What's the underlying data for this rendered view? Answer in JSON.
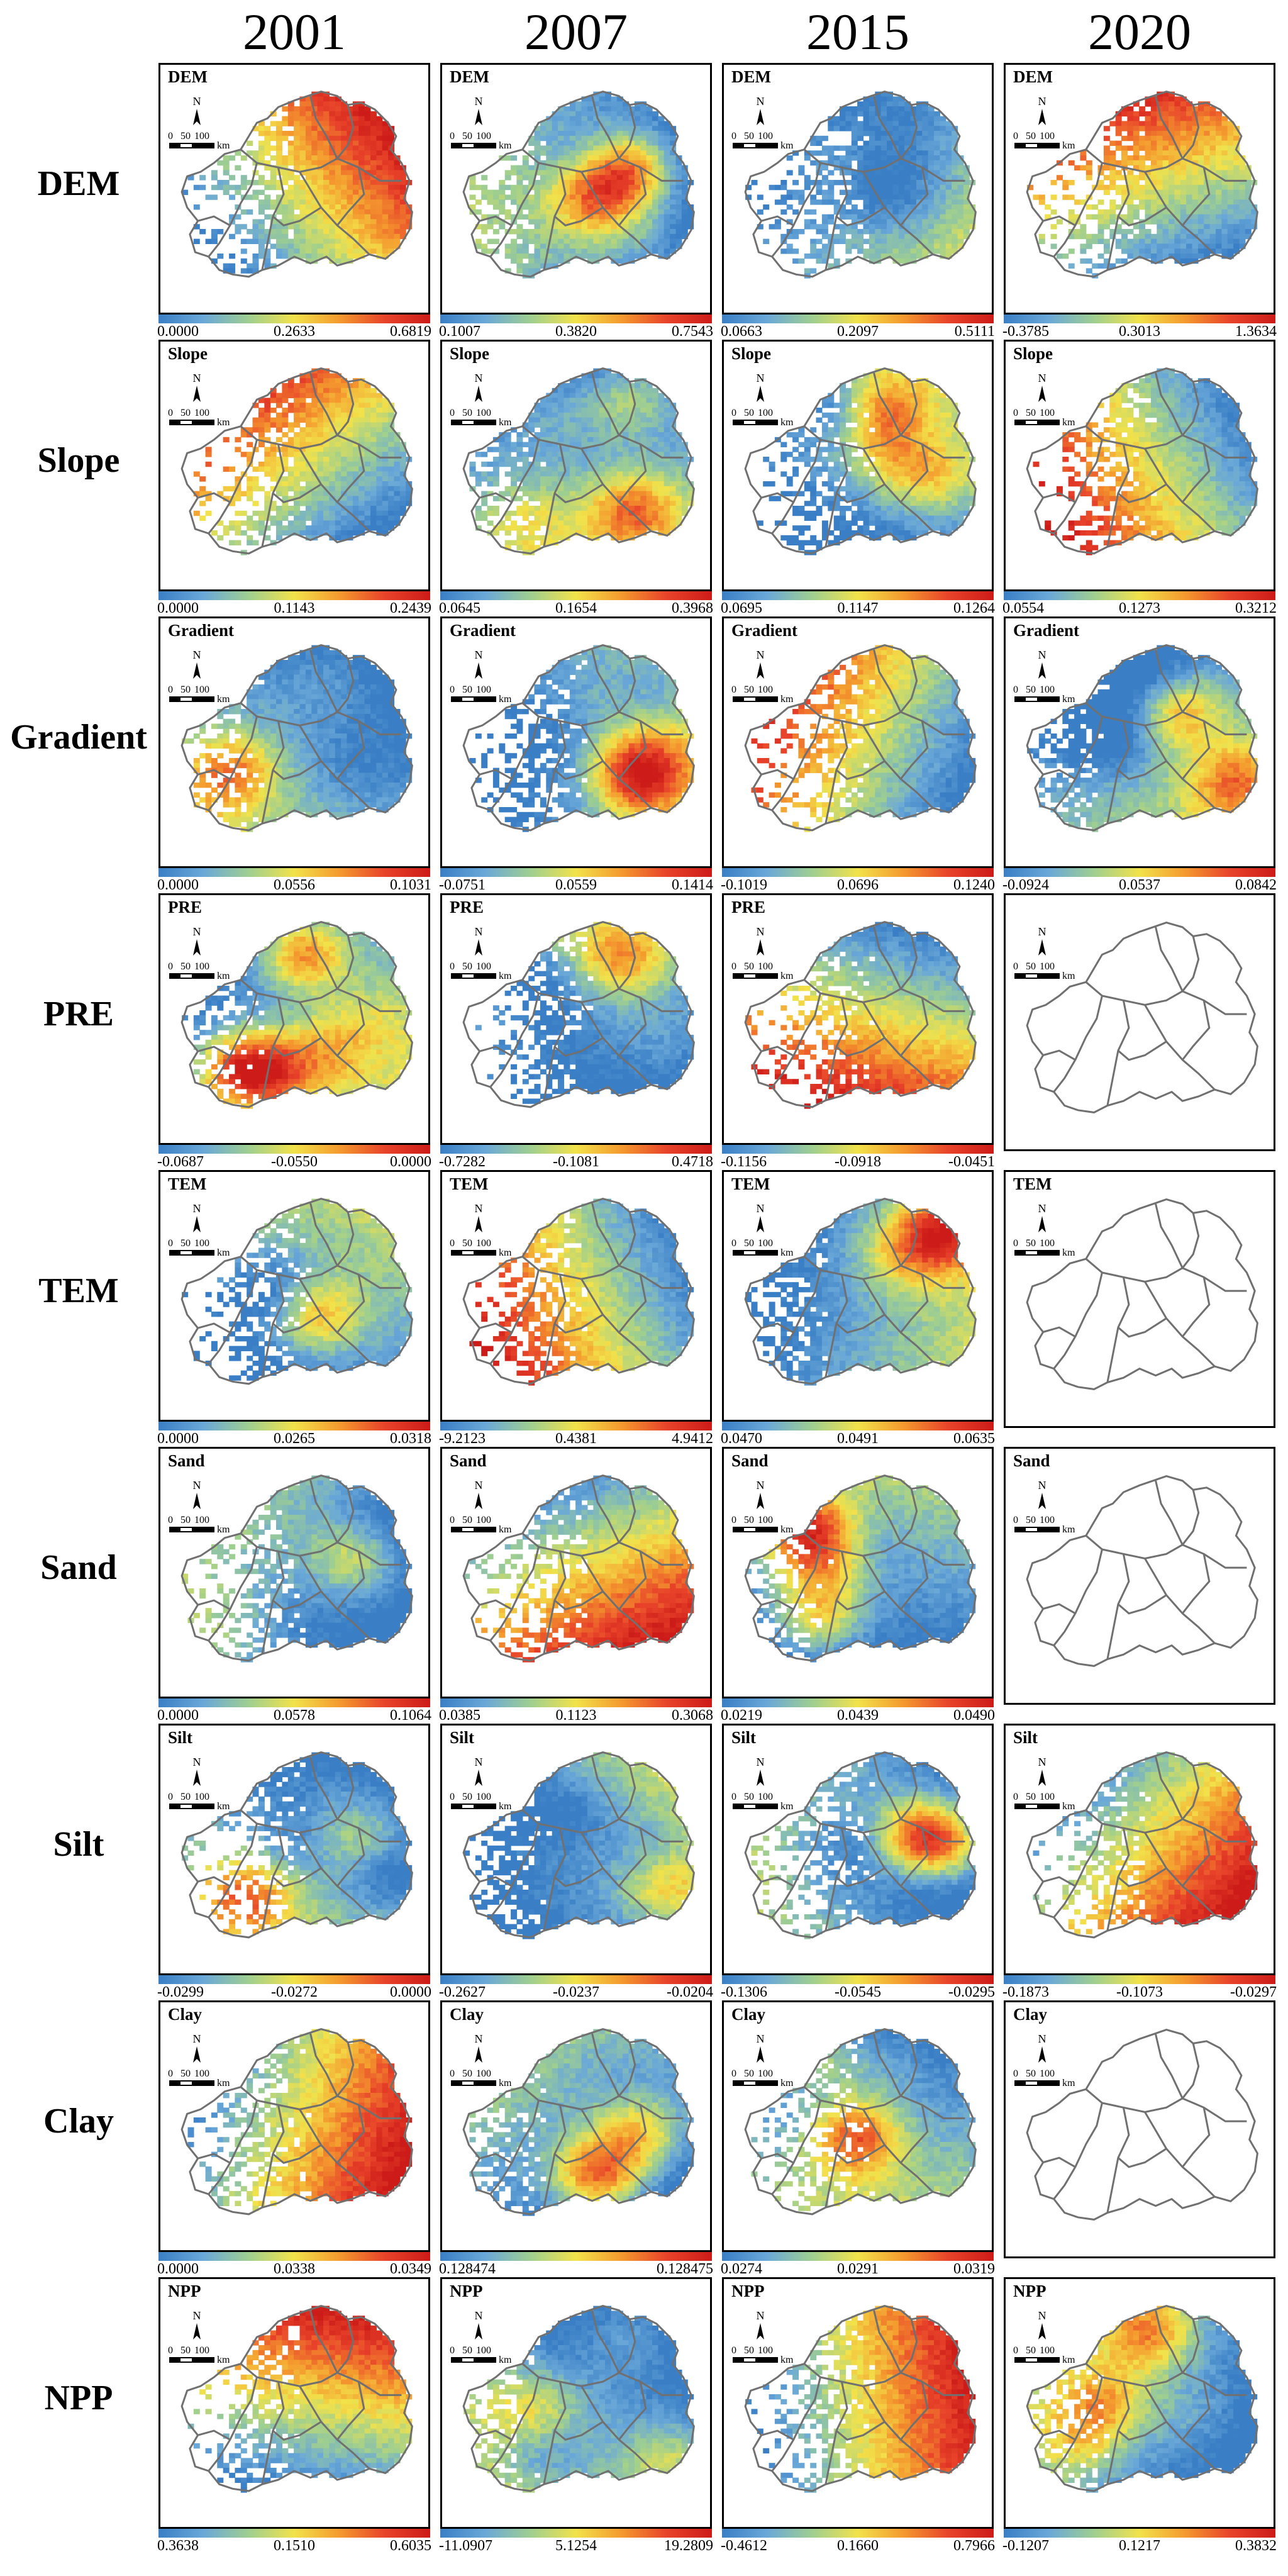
{
  "years": [
    "2001",
    "2007",
    "2015",
    "2020"
  ],
  "map_labels": {
    "north": "N",
    "scale_ticks": [
      "0",
      "50",
      "100"
    ],
    "scale_unit": "km"
  },
  "colormap": [
    "#3a7fc6",
    "#6aa8d8",
    "#9fcf8f",
    "#f2e24a",
    "#f49a2e",
    "#e8432a",
    "#cc1b18"
  ],
  "rows": [
    {
      "label": "DEM",
      "cells": [
        {
          "title": "DEM",
          "empty": false,
          "ticks": [
            "0.0000",
            "0.2633",
            "0.6819"
          ]
        },
        {
          "title": "DEM",
          "empty": false,
          "ticks": [
            "0.1007",
            "0.3820",
            "0.7543"
          ]
        },
        {
          "title": "DEM",
          "empty": false,
          "ticks": [
            "0.0663",
            "0.2097",
            "0.5111"
          ]
        },
        {
          "title": "DEM",
          "empty": false,
          "ticks": [
            "-0.3785",
            "0.3013",
            "1.3634"
          ]
        }
      ]
    },
    {
      "label": "Slope",
      "cells": [
        {
          "title": "Slope",
          "empty": false,
          "ticks": [
            "0.0000",
            "0.1143",
            "0.2439"
          ]
        },
        {
          "title": "Slope",
          "empty": false,
          "ticks": [
            "0.0645",
            "0.1654",
            "0.3968"
          ]
        },
        {
          "title": "Slope",
          "empty": false,
          "ticks": [
            "0.0695",
            "0.1147",
            "0.1264"
          ]
        },
        {
          "title": "Slope",
          "empty": false,
          "ticks": [
            "0.0554",
            "0.1273",
            "0.3212"
          ]
        }
      ]
    },
    {
      "label": "Gradient",
      "cells": [
        {
          "title": "Gradient",
          "empty": false,
          "ticks": [
            "0.0000",
            "0.0556",
            "0.1031"
          ]
        },
        {
          "title": "Gradient",
          "empty": false,
          "ticks": [
            "-0.0751",
            "0.0559",
            "0.1414"
          ]
        },
        {
          "title": "Gradient",
          "empty": false,
          "ticks": [
            "-0.1019",
            "0.0696",
            "0.1240"
          ]
        },
        {
          "title": "Gradient",
          "empty": false,
          "ticks": [
            "-0.0924",
            "0.0537",
            "0.0842"
          ]
        }
      ]
    },
    {
      "label": "PRE",
      "cells": [
        {
          "title": "PRE",
          "empty": false,
          "ticks": [
            "-0.0687",
            "-0.0550",
            "0.0000"
          ]
        },
        {
          "title": "PRE",
          "empty": false,
          "ticks": [
            "-0.7282",
            "-0.1081",
            "0.4718"
          ]
        },
        {
          "title": "PRE",
          "empty": false,
          "ticks": [
            "-0.1156",
            "-0.0918",
            "-0.0451"
          ]
        },
        {
          "title": "",
          "empty": true,
          "ticks": []
        }
      ]
    },
    {
      "label": "TEM",
      "cells": [
        {
          "title": "TEM",
          "empty": false,
          "ticks": [
            "0.0000",
            "0.0265",
            "0.0318"
          ]
        },
        {
          "title": "TEM",
          "empty": false,
          "ticks": [
            "-9.2123",
            "0.4381",
            "4.9412"
          ]
        },
        {
          "title": "TEM",
          "empty": false,
          "ticks": [
            "0.0470",
            "0.0491",
            "0.0635"
          ]
        },
        {
          "title": "TEM",
          "empty": true,
          "ticks": []
        }
      ]
    },
    {
      "label": "Sand",
      "cells": [
        {
          "title": "Sand",
          "empty": false,
          "ticks": [
            "0.0000",
            "0.0578",
            "0.1064"
          ]
        },
        {
          "title": "Sand",
          "empty": false,
          "ticks": [
            "0.0385",
            "0.1123",
            "0.3068"
          ]
        },
        {
          "title": "Sand",
          "empty": false,
          "ticks": [
            "0.0219",
            "0.0439",
            "0.0490"
          ]
        },
        {
          "title": "Sand",
          "empty": true,
          "ticks": []
        }
      ]
    },
    {
      "label": "Silt",
      "cells": [
        {
          "title": "Silt",
          "empty": false,
          "ticks": [
            "-0.0299",
            "-0.0272",
            "0.0000"
          ]
        },
        {
          "title": "Silt",
          "empty": false,
          "ticks": [
            "-0.2627",
            "-0.0237",
            "-0.0204"
          ]
        },
        {
          "title": "Silt",
          "empty": false,
          "ticks": [
            "-0.1306",
            "-0.0545",
            "-0.0295"
          ]
        },
        {
          "title": "Silt",
          "empty": false,
          "ticks": [
            "-0.1873",
            "-0.1073",
            "-0.0297"
          ]
        }
      ]
    },
    {
      "label": "Clay",
      "cells": [
        {
          "title": "Clay",
          "empty": false,
          "ticks": [
            "0.0000",
            "0.0338",
            "0.0349"
          ]
        },
        {
          "title": "Clay",
          "empty": false,
          "ticks": [
            "0.128474",
            "",
            "0.128475"
          ]
        },
        {
          "title": "Clay",
          "empty": false,
          "ticks": [
            "0.0274",
            "0.0291",
            "0.0319"
          ]
        },
        {
          "title": "Clay",
          "empty": true,
          "ticks": []
        }
      ]
    },
    {
      "label": "NPP",
      "cells": [
        {
          "title": "NPP",
          "empty": false,
          "ticks": [
            "0.3638",
            "0.1510",
            "0.6035"
          ]
        },
        {
          "title": "NPP",
          "empty": false,
          "ticks": [
            "-11.0907",
            "5.1254",
            "19.2809"
          ]
        },
        {
          "title": "NPP",
          "empty": false,
          "ticks": [
            "-0.4612",
            "0.1660",
            "0.7966"
          ]
        },
        {
          "title": "NPP",
          "empty": false,
          "ticks": [
            "-0.1207",
            "0.1217",
            "0.3832"
          ]
        }
      ]
    }
  ]
}
